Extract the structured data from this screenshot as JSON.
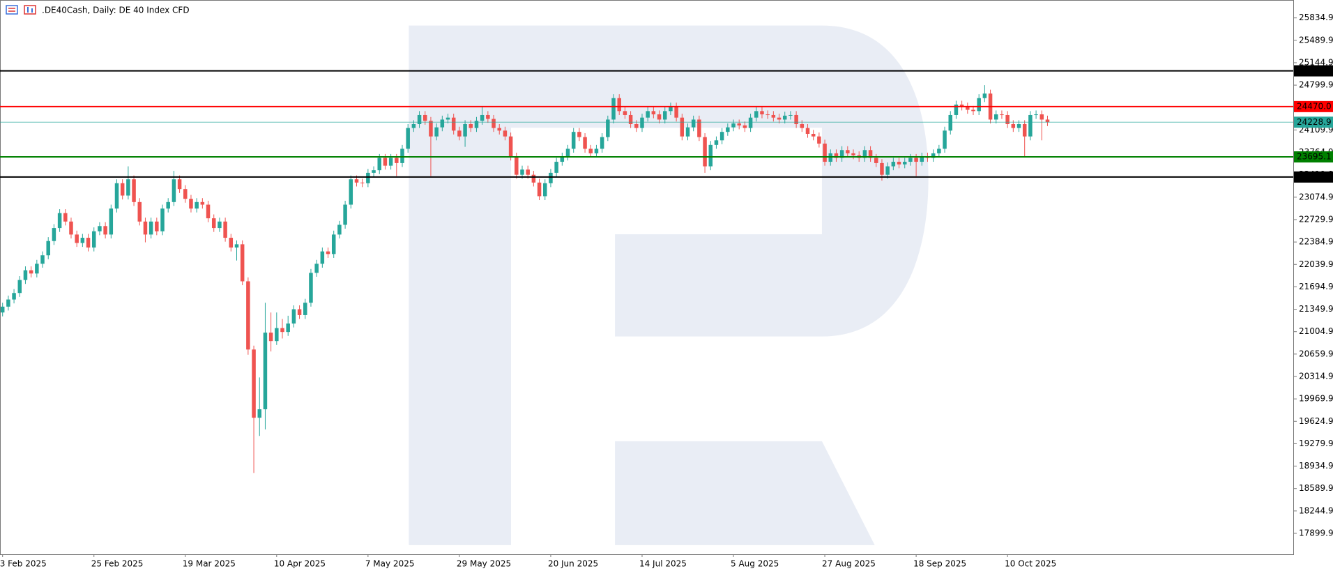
{
  "chart_data": {
    "type": "candlestick",
    "title": ".DE40Cash, Daily:  DE 40 Index CFD",
    "categories": [
      "3 Feb 2025",
      null,
      null,
      null,
      null,
      null,
      null,
      null,
      null,
      null,
      null,
      null,
      null,
      null,
      null,
      null,
      "25 Feb 2025",
      null,
      null,
      null,
      null,
      null,
      null,
      null,
      null,
      null,
      null,
      null,
      null,
      null,
      null,
      null,
      "19 Mar 2025",
      null,
      null,
      null,
      null,
      null,
      null,
      null,
      null,
      null,
      null,
      null,
      null,
      null,
      null,
      null,
      "10 Apr 2025",
      null,
      null,
      null,
      null,
      null,
      null,
      null,
      null,
      null,
      null,
      null,
      null,
      null,
      null,
      null,
      "7 May 2025",
      null,
      null,
      null,
      null,
      null,
      null,
      null,
      null,
      null,
      null,
      null,
      null,
      null,
      null,
      null,
      "29 May 2025",
      null,
      null,
      null,
      null,
      null,
      null,
      null,
      null,
      null,
      null,
      null,
      null,
      null,
      null,
      null,
      "20 Jun 2025",
      null,
      null,
      null,
      null,
      null,
      null,
      null,
      null,
      null,
      null,
      null,
      null,
      null,
      null,
      null,
      "14 Jul 2025",
      null,
      null,
      null,
      null,
      null,
      null,
      null,
      null,
      null,
      null,
      null,
      null,
      null,
      null,
      null,
      "5 Aug 2025",
      null,
      null,
      null,
      null,
      null,
      null,
      null,
      null,
      null,
      null,
      null,
      null,
      null,
      null,
      null,
      "27 Aug 2025",
      null,
      null,
      null,
      null,
      null,
      null,
      null,
      null,
      null,
      null,
      null,
      null,
      null,
      null,
      null,
      "18 Sep 2025",
      null,
      null,
      null,
      null,
      null,
      null,
      null,
      null,
      null,
      null,
      null,
      null,
      null,
      null,
      null,
      "10 Oct 2025",
      null,
      null,
      null,
      null,
      null,
      null,
      null
    ],
    "open": [
      21300,
      21390,
      21500,
      21600,
      21800,
      21950,
      21900,
      22050,
      22180,
      22400,
      22600,
      22830,
      22700,
      22500,
      22370,
      22450,
      22300,
      22550,
      22630,
      22500,
      22900,
      23290,
      23100,
      23350,
      23000,
      22700,
      22500,
      22700,
      22550,
      22900,
      23000,
      23350,
      23200,
      23050,
      22900,
      23000,
      22960,
      22750,
      22600,
      22700,
      22450,
      22300,
      22350,
      21780,
      20730,
      19680,
      19810,
      20990,
      20860,
      21060,
      21000,
      21130,
      21350,
      21260,
      21450,
      21910,
      22050,
      22240,
      22200,
      22500,
      22650,
      22960,
      23350,
      23300,
      23290,
      23450,
      23490,
      23680,
      23560,
      23680,
      23600,
      23820,
      24140,
      24200,
      24340,
      24250,
      24010,
      24150,
      24270,
      24300,
      24100,
      24010,
      24200,
      24140,
      24250,
      24340,
      24280,
      24140,
      24100,
      24010,
      23700,
      23420,
      23500,
      23420,
      23300,
      23090,
      23290,
      23450,
      23620,
      23700,
      23820,
      24080,
      24000,
      23820,
      23750,
      23820,
      24000,
      24270,
      24600,
      24400,
      24340,
      24200,
      24140,
      24300,
      24400,
      24350,
      24270,
      24400,
      24470,
      24300,
      24010,
      24150,
      24270,
      24000,
      23550,
      23880,
      23950,
      24080,
      24150,
      24210,
      24180,
      24140,
      24300,
      24400,
      24350,
      24340,
      24300,
      24270,
      24330,
      24340,
      24200,
      24140,
      24050,
      24010,
      23900,
      23620,
      23750,
      23680,
      23800,
      23750,
      23720,
      23680,
      23800,
      23680,
      23600,
      23420,
      23550,
      23620,
      23580,
      23620,
      23680,
      23620,
      23700,
      23680,
      23750,
      23820,
      24100,
      24340,
      24500,
      24470,
      24420,
      24400,
      24600,
      24670,
      24270,
      24350,
      24340,
      24200,
      24140,
      24200,
      24010,
      24340,
      24350,
      24270
    ],
    "high": [
      21450,
      21560,
      21660,
      21860,
      22010,
      22010,
      22110,
      22240,
      22460,
      22660,
      22890,
      22890,
      22760,
      22560,
      22510,
      22510,
      22610,
      22690,
      22690,
      22960,
      23350,
      23350,
      23550,
      23410,
      23060,
      22760,
      22760,
      22760,
      22960,
      23060,
      23480,
      23410,
      23260,
      23110,
      23060,
      23060,
      23020,
      22810,
      22760,
      22760,
      22510,
      22410,
      22410,
      21840,
      20790,
      20300,
      21450,
      21300,
      21300,
      21200,
      21250,
      21410,
      21410,
      21510,
      21970,
      22110,
      22300,
      22300,
      22560,
      22710,
      23020,
      23410,
      23410,
      23360,
      23510,
      23550,
      23740,
      23740,
      23740,
      23740,
      23880,
      24200,
      24260,
      24400,
      24400,
      24310,
      24210,
      24330,
      24360,
      24360,
      24160,
      24260,
      24260,
      24310,
      24470,
      24400,
      24340,
      24200,
      24160,
      24070,
      23760,
      23560,
      23560,
      23480,
      23360,
      23350,
      23510,
      23680,
      23760,
      23880,
      24140,
      24140,
      24060,
      23880,
      23880,
      24060,
      24330,
      24660,
      24660,
      24460,
      24400,
      24260,
      24360,
      24460,
      24460,
      24410,
      24460,
      24530,
      24530,
      24360,
      24210,
      24330,
      24330,
      24060,
      23940,
      24010,
      24140,
      24210,
      24270,
      24270,
      24240,
      24360,
      24460,
      24460,
      24410,
      24400,
      24360,
      24390,
      24400,
      24400,
      24260,
      24200,
      24110,
      24070,
      23960,
      23810,
      23810,
      23860,
      23860,
      23810,
      23780,
      23860,
      23860,
      23740,
      23660,
      23610,
      23680,
      23680,
      23680,
      23740,
      23740,
      23760,
      23760,
      23810,
      23880,
      24160,
      24400,
      24560,
      24560,
      24530,
      24480,
      24660,
      24800,
      24730,
      24410,
      24410,
      24400,
      24260,
      24260,
      24260,
      24400,
      24410,
      24410,
      24330
    ],
    "low": [
      21240,
      21330,
      21440,
      21540,
      21740,
      21840,
      21840,
      21990,
      22120,
      22340,
      22540,
      22640,
      22440,
      22310,
      22310,
      22240,
      22240,
      22490,
      22440,
      22440,
      22840,
      23040,
      23040,
      22940,
      22640,
      22380,
      22440,
      22490,
      22490,
      22840,
      22940,
      23140,
      22990,
      22840,
      22840,
      22900,
      22690,
      22540,
      22540,
      22390,
      22240,
      22100,
      21720,
      20650,
      18830,
      19400,
      19500,
      20700,
      20800,
      20900,
      20940,
      21070,
      21200,
      21200,
      21390,
      21850,
      21990,
      22140,
      22140,
      22440,
      22590,
      22900,
      23240,
      23230,
      23230,
      23390,
      23430,
      23500,
      23500,
      23400,
      23540,
      23760,
      24080,
      24140,
      24190,
      23400,
      23950,
      24090,
      24210,
      24040,
      23950,
      23850,
      24080,
      24080,
      24190,
      24220,
      24080,
      24040,
      23950,
      23640,
      23360,
      23360,
      23360,
      23240,
      23030,
      23030,
      23230,
      23390,
      23560,
      23640,
      23760,
      23940,
      23760,
      23690,
      23690,
      23760,
      23940,
      24210,
      24340,
      24280,
      24140,
      24080,
      24080,
      24240,
      24290,
      24210,
      24210,
      24340,
      24240,
      23950,
      23950,
      24090,
      23940,
      23450,
      23490,
      23820,
      23890,
      24020,
      24090,
      24120,
      24080,
      24080,
      24240,
      24290,
      24280,
      24240,
      24210,
      24210,
      24270,
      24140,
      24080,
      23990,
      23950,
      23840,
      23560,
      23560,
      23620,
      23620,
      23690,
      23660,
      23620,
      23620,
      23620,
      23540,
      23330,
      23360,
      23490,
      23520,
      23520,
      23560,
      23400,
      23560,
      23620,
      23620,
      23690,
      23760,
      24040,
      24280,
      24410,
      24360,
      24340,
      24340,
      24540,
      24210,
      24210,
      24280,
      24140,
      24080,
      24080,
      23700,
      23950,
      24280,
      23950,
      24170
    ],
    "close": [
      21390,
      21500,
      21600,
      21800,
      21950,
      21900,
      22050,
      22180,
      22400,
      22600,
      22830,
      22700,
      22500,
      22370,
      22450,
      22300,
      22550,
      22630,
      22500,
      22900,
      23290,
      23100,
      23350,
      23000,
      22700,
      22500,
      22700,
      22550,
      22900,
      23000,
      23350,
      23200,
      23050,
      22900,
      23000,
      22960,
      22750,
      22600,
      22700,
      22450,
      22300,
      22350,
      21780,
      20730,
      19680,
      19810,
      20990,
      20860,
      21060,
      21000,
      21130,
      21350,
      21260,
      21450,
      21910,
      22050,
      22240,
      22200,
      22500,
      22650,
      22960,
      23350,
      23300,
      23290,
      23450,
      23490,
      23680,
      23560,
      23680,
      23600,
      23820,
      24140,
      24200,
      24340,
      24250,
      24010,
      24150,
      24270,
      24300,
      24100,
      24010,
      24200,
      24140,
      24250,
      24340,
      24280,
      24140,
      24100,
      24010,
      23700,
      23420,
      23500,
      23420,
      23300,
      23090,
      23290,
      23450,
      23620,
      23700,
      23820,
      24080,
      24000,
      23820,
      23750,
      23820,
      24000,
      24270,
      24600,
      24400,
      24340,
      24200,
      24140,
      24300,
      24400,
      24350,
      24270,
      24400,
      24470,
      24300,
      24010,
      24150,
      24270,
      24000,
      23550,
      23880,
      23950,
      24080,
      24150,
      24210,
      24180,
      24140,
      24300,
      24400,
      24350,
      24340,
      24300,
      24270,
      24330,
      24340,
      24200,
      24140,
      24050,
      24010,
      23900,
      23620,
      23750,
      23680,
      23800,
      23750,
      23720,
      23680,
      23800,
      23680,
      23600,
      23420,
      23550,
      23620,
      23580,
      23620,
      23680,
      23620,
      23700,
      23680,
      23750,
      23820,
      24100,
      24340,
      24500,
      24470,
      24420,
      24400,
      24600,
      24670,
      24270,
      24350,
      24340,
      24200,
      24140,
      24200,
      24010,
      24340,
      24350,
      24270,
      24228.9
    ],
    "up_color": "#26a69a",
    "down_color": "#ef5350",
    "ylim": [
      17578,
      26089
    ],
    "yticks": [
      17899.9,
      18244.9,
      18589.9,
      18934.9,
      19279.9,
      19624.9,
      19969.9,
      20314.9,
      20659.9,
      21004.9,
      21349.9,
      21694.9,
      22039.9,
      22384.9,
      22729.9,
      23074.9,
      23419.9,
      23764.9,
      24109.9,
      24454.9,
      24799.9,
      25144.9,
      25489.9,
      25834.9
    ],
    "hlines": [
      {
        "value": 25020.0,
        "label": "25020.0",
        "color": "#000000"
      },
      {
        "value": 24470.0,
        "label": "24470.0",
        "color": "#ff0000"
      },
      {
        "value": 24228.9,
        "label": "24228.9",
        "color": "#26a69a"
      },
      {
        "value": 23695.1,
        "label": "23695.1",
        "color": "#008000"
      },
      {
        "value": 23385.5,
        "label": "23385.5",
        "color": "#000000"
      }
    ],
    "grid": false
  }
}
